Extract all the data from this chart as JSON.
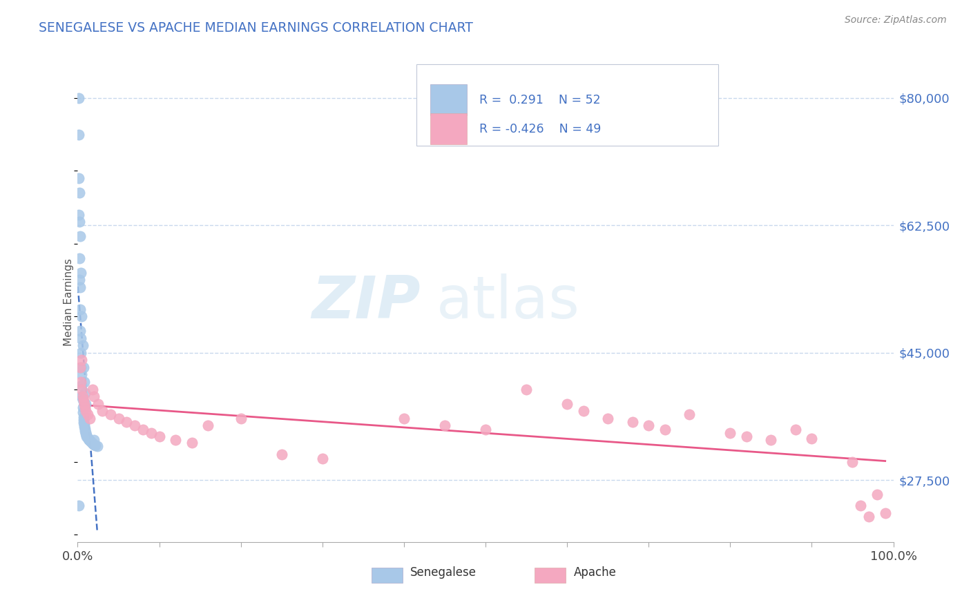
{
  "title": "SENEGALESE VS APACHE MEDIAN EARNINGS CORRELATION CHART",
  "source_text": "Source: ZipAtlas.com",
  "ylabel": "Median Earnings",
  "xlim": [
    0.0,
    1.0
  ],
  "ylim": [
    19000,
    85000
  ],
  "yticks": [
    27500,
    45000,
    62500,
    80000
  ],
  "ytick_labels": [
    "$27,500",
    "$45,000",
    "$62,500",
    "$80,000"
  ],
  "xtick_positions": [
    0.0,
    0.1,
    0.2,
    0.3,
    0.4,
    0.5,
    0.6,
    0.7,
    0.8,
    0.9,
    1.0
  ],
  "xtick_labels_show": [
    "0.0%",
    "",
    "",
    "",
    "",
    "",
    "",
    "",
    "",
    "",
    "100.0%"
  ],
  "grid_color": "#c8d8ed",
  "background_color": "#ffffff",
  "watermark_zip": "ZIP",
  "watermark_atlas": "atlas",
  "legend_r1": "0.291",
  "legend_n1": "52",
  "legend_r2": "-0.426",
  "legend_n2": "49",
  "color_senegalese": "#a8c8e8",
  "color_apache": "#f4a8c0",
  "trendline_color_senegalese": "#4472c4",
  "trendline_color_apache": "#e85888",
  "title_color": "#4472c4",
  "source_color": "#888888",
  "ylabel_color": "#555555",
  "yticklabel_color": "#4472c4",
  "senegalese_x": [
    0.001,
    0.001,
    0.001,
    0.002,
    0.002,
    0.002,
    0.003,
    0.003,
    0.003,
    0.004,
    0.004,
    0.004,
    0.005,
    0.005,
    0.005,
    0.006,
    0.006,
    0.006,
    0.007,
    0.007,
    0.007,
    0.008,
    0.008,
    0.009,
    0.009,
    0.01,
    0.01,
    0.011,
    0.011,
    0.012,
    0.013,
    0.014,
    0.015,
    0.016,
    0.017,
    0.018,
    0.019,
    0.02,
    0.022,
    0.024,
    0.001,
    0.002,
    0.003,
    0.004,
    0.005,
    0.006,
    0.007,
    0.008,
    0.009,
    0.01,
    0.02,
    0.001
  ],
  "senegalese_y": [
    75000,
    69000,
    64000,
    63000,
    58000,
    55000,
    54000,
    51000,
    48000,
    47000,
    45000,
    43000,
    42000,
    40500,
    39000,
    38500,
    37500,
    36800,
    36200,
    35800,
    35400,
    35100,
    34800,
    34600,
    34300,
    34100,
    33900,
    33700,
    33500,
    33300,
    33100,
    33000,
    32900,
    32800,
    32700,
    32600,
    32500,
    32400,
    32300,
    32200,
    80000,
    67000,
    61000,
    56000,
    50000,
    46000,
    43000,
    41000,
    39500,
    38000,
    33000,
    24000
  ],
  "apache_x": [
    0.003,
    0.004,
    0.005,
    0.006,
    0.007,
    0.008,
    0.009,
    0.01,
    0.012,
    0.015,
    0.018,
    0.02,
    0.025,
    0.03,
    0.04,
    0.05,
    0.06,
    0.07,
    0.08,
    0.09,
    0.1,
    0.12,
    0.14,
    0.16,
    0.2,
    0.25,
    0.3,
    0.4,
    0.45,
    0.5,
    0.55,
    0.6,
    0.62,
    0.65,
    0.68,
    0.7,
    0.72,
    0.75,
    0.8,
    0.82,
    0.85,
    0.88,
    0.9,
    0.95,
    0.96,
    0.97,
    0.98,
    0.99,
    0.005
  ],
  "apache_y": [
    43000,
    41000,
    40000,
    39000,
    38500,
    38000,
    37500,
    37000,
    36500,
    36000,
    40000,
    39000,
    38000,
    37000,
    36500,
    36000,
    35500,
    35000,
    34500,
    34000,
    33500,
    33000,
    32700,
    35000,
    36000,
    31000,
    30500,
    36000,
    35000,
    34500,
    40000,
    38000,
    37000,
    36000,
    35500,
    35000,
    34500,
    36500,
    34000,
    33500,
    33000,
    34500,
    33200,
    30000,
    24000,
    22500,
    25500,
    23000,
    44000
  ]
}
